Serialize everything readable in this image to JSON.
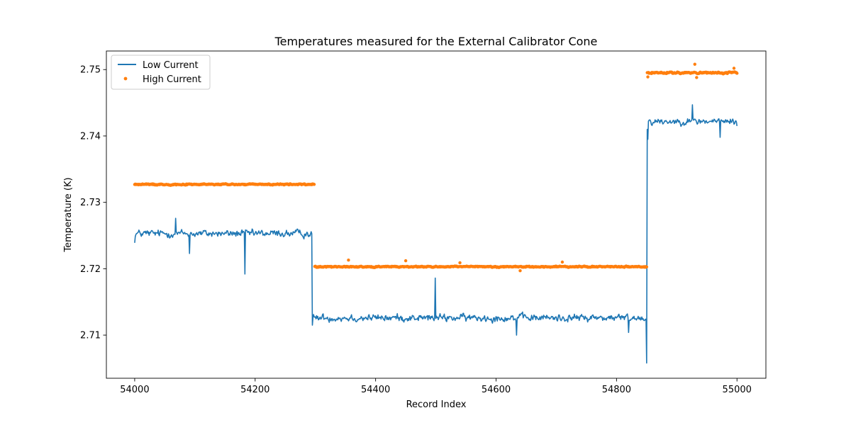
{
  "chart_data": {
    "type": "line+scatter",
    "title": "Temperatures measured for the External Calibrator Cone",
    "xlabel": "Record Index",
    "ylabel": "Temperature (K)",
    "xlim": [
      53953,
      55048
    ],
    "ylim": [
      2.7035,
      2.7528
    ],
    "xticks": [
      54000,
      54200,
      54400,
      54600,
      54800,
      55000
    ],
    "xtick_labels": [
      "54000",
      "54200",
      "54400",
      "54600",
      "54800",
      "55000"
    ],
    "yticks": [
      2.71,
      2.72,
      2.73,
      2.74,
      2.75
    ],
    "ytick_labels": [
      "2.71",
      "2.72",
      "2.73",
      "2.74",
      "2.75"
    ],
    "legend": {
      "position": "top-left"
    },
    "series": [
      {
        "name": "Low Current",
        "kind": "line",
        "color": "#1f77b4",
        "segments": [
          {
            "x_start": 54000,
            "x_end": 54294,
            "level": 2.7253,
            "noise": 0.0009
          },
          {
            "x_start": 54295,
            "x_end": 54849,
            "level": 2.7126,
            "noise": 0.0009
          },
          {
            "x_start": 54850,
            "x_end": 55000,
            "level": 2.7422,
            "noise": 0.0008
          }
        ],
        "features": [
          {
            "x": 54000,
            "y": 2.7239
          },
          {
            "x": 54068,
            "y": 2.7276
          },
          {
            "x": 54091,
            "y": 2.7223
          },
          {
            "x": 54183,
            "y": 2.7192
          },
          {
            "x": 54294,
            "y": 2.7253
          },
          {
            "x": 54295,
            "y": 2.7115
          },
          {
            "x": 54499,
            "y": 2.7186
          },
          {
            "x": 54500,
            "y": 2.7125
          },
          {
            "x": 54634,
            "y": 2.71
          },
          {
            "x": 54820,
            "y": 2.7104
          },
          {
            "x": 54849,
            "y": 2.7124
          },
          {
            "x": 54850,
            "y": 2.7058
          },
          {
            "x": 54851,
            "y": 2.741
          },
          {
            "x": 54852,
            "y": 2.7395
          },
          {
            "x": 54926,
            "y": 2.7447
          },
          {
            "x": 54972,
            "y": 2.7398
          },
          {
            "x": 55000,
            "y": 2.7415
          }
        ]
      },
      {
        "name": "High Current",
        "kind": "scatter",
        "color": "#ff7f0e",
        "segments": [
          {
            "x_start": 54000,
            "x_end": 54298,
            "level": 2.7327,
            "noise": 0.00015
          },
          {
            "x_start": 54299,
            "x_end": 54850,
            "level": 2.7203,
            "noise": 0.00015
          },
          {
            "x_start": 54851,
            "x_end": 55000,
            "level": 2.7495,
            "noise": 0.00018
          }
        ],
        "features": [
          {
            "x": 54355,
            "y": 2.7213
          },
          {
            "x": 54450,
            "y": 2.7212
          },
          {
            "x": 54540,
            "y": 2.7209
          },
          {
            "x": 54640,
            "y": 2.7197
          },
          {
            "x": 54710,
            "y": 2.721
          },
          {
            "x": 54930,
            "y": 2.7508
          },
          {
            "x": 54933,
            "y": 2.7488
          },
          {
            "x": 54852,
            "y": 2.7489
          },
          {
            "x": 54995,
            "y": 2.7502
          }
        ]
      }
    ]
  }
}
